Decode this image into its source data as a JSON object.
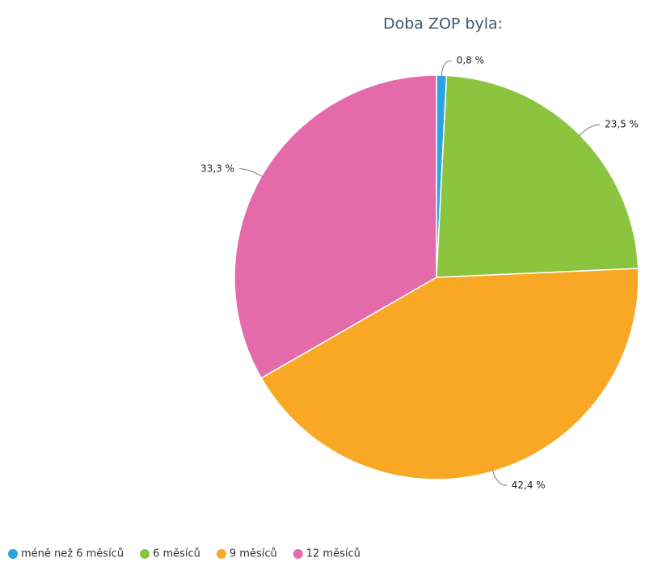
{
  "chart_data": {
    "type": "pie",
    "title": "Doba ZOP byla:",
    "categories": [
      "méně než 6 měsíců",
      "6 měsíců",
      "9 měsíců",
      "12 měsíců"
    ],
    "values": [
      0.8,
      23.5,
      42.4,
      33.3
    ],
    "value_labels": [
      "0,8 %",
      "23,5 %",
      "42,4 %",
      "33,3 %"
    ],
    "colors": [
      "#2ba3e0",
      "#8bc540",
      "#f9a825",
      "#e46aa9"
    ],
    "legend": "bottom"
  }
}
